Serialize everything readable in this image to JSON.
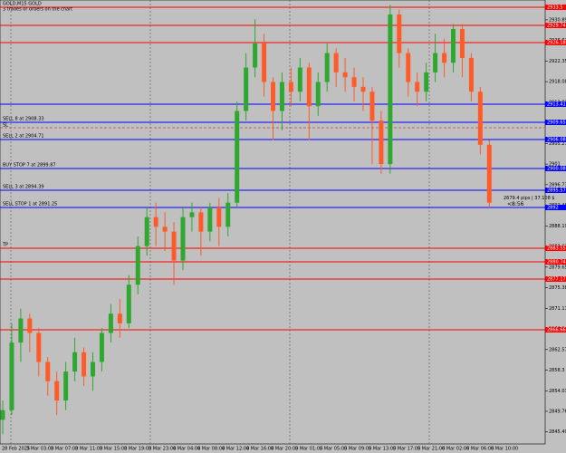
{
  "chart_data": {
    "type": "candlestick",
    "title": "GOLD,M15 GOLD",
    "subtitle": "3 trades or orders on the chart",
    "up_color": "#2fa82f",
    "down_color": "#ff5a28",
    "ylim": [
      2843,
      2935
    ],
    "yticks": [
      2845.49,
      2849.76,
      2854.03,
      2858.3,
      2862.57,
      2866.84,
      2871.11,
      2875.38,
      2879.65,
      2883.92,
      2888.19,
      2892.46,
      2896.73,
      2901,
      2905.27,
      2909.54,
      2913.81,
      2918.08,
      2922.35,
      2926.62,
      2930.89
    ],
    "time_labels": [
      "28 Feb 2025",
      "3 Mar 03:00",
      "3 Mar 07:00",
      "3 Mar 11:00",
      "3 Mar 15:00",
      "3 Mar 19:00",
      "3 Mar 23:00",
      "4 Mar 04:00",
      "4 Mar 08:00",
      "4 Mar 12:00",
      "4 Mar 16:00",
      "4 Mar 20:00",
      "5 Mar 01:00",
      "5 Mar 05:00",
      "5 Mar 09:00",
      "5 Mar 13:00",
      "5 Mar 17:00",
      "5 Mar 21:00",
      "6 Mar 02:00",
      "6 Mar 06:00",
      "6 Mar 10:00"
    ],
    "open": [
      2848,
      2850,
      2864,
      2869,
      2866,
      2860,
      2856,
      2852,
      2858,
      2862,
      2857,
      2860,
      2866,
      2870,
      2868,
      2876,
      2884,
      2890,
      2888,
      2887,
      2881,
      2890,
      2891,
      2887,
      2892,
      2888,
      2893,
      2912,
      2921,
      2926,
      2918,
      2912,
      2918,
      2916,
      2921,
      2913,
      2918,
      2924,
      2920,
      2919,
      2917,
      2916,
      2910,
      2901,
      2932,
      2924,
      2918,
      2916,
      2920,
      2924,
      2922,
      2929,
      2923,
      2916,
      2905
    ],
    "high": [
      2852,
      2868,
      2871,
      2870,
      2867,
      2861,
      2858,
      2860,
      2865,
      2863,
      2862,
      2867,
      2872,
      2873,
      2878,
      2886,
      2892,
      2893,
      2891,
      2889,
      2892,
      2893,
      2892,
      2893,
      2894,
      2895,
      2914,
      2924,
      2931,
      2928,
      2919,
      2920,
      2921,
      2923,
      2922,
      2920,
      2926,
      2925,
      2923,
      2921,
      2919,
      2917,
      2912,
      2934,
      2933,
      2925,
      2920,
      2922,
      2928,
      2927,
      2930,
      2930,
      2924,
      2917,
      2906
    ],
    "low": [
      2845,
      2849,
      2860,
      2862,
      2857,
      2853,
      2849,
      2850,
      2856,
      2855,
      2854,
      2858,
      2864,
      2865,
      2867,
      2874,
      2882,
      2884,
      2883,
      2876,
      2879,
      2887,
      2882,
      2885,
      2884,
      2886,
      2892,
      2910,
      2919,
      2915,
      2906,
      2908,
      2913,
      2914,
      2906,
      2911,
      2916,
      2917,
      2916,
      2914,
      2912,
      2901,
      2899,
      2899,
      2921,
      2915,
      2913,
      2914,
      2918,
      2919,
      2920,
      2919,
      2914,
      2903,
      2892
    ],
    "close": [
      2850,
      2864,
      2869,
      2866,
      2860,
      2856,
      2852,
      2858,
      2862,
      2857,
      2860,
      2866,
      2870,
      2868,
      2876,
      2884,
      2890,
      2888,
      2887,
      2881,
      2890,
      2891,
      2887,
      2892,
      2888,
      2893,
      2912,
      2921,
      2926,
      2918,
      2912,
      2918,
      2916,
      2921,
      2913,
      2918,
      2924,
      2920,
      2919,
      2917,
      2916,
      2910,
      2901,
      2932,
      2924,
      2918,
      2916,
      2920,
      2924,
      2922,
      2929,
      2923,
      2916,
      2905,
      2893
    ],
    "levels": [
      {
        "value": 2933.5,
        "color": "#ff0000"
      },
      {
        "value": 2929.74,
        "color": "#ff0000"
      },
      {
        "value": 2926.18,
        "color": "#ff0000"
      },
      {
        "value": 2913.41,
        "color": "#0000ff"
      },
      {
        "value": 2909.65,
        "color": "#0000ff",
        "label": "SELL 8 at 2908.33"
      },
      {
        "value": 2906.08,
        "color": "#0000ff",
        "label": "SELL 2 at 2904.71"
      },
      {
        "value": 2900.08,
        "color": "#0000ff",
        "label": "BUY STOP 7 at 2899.87"
      },
      {
        "value": 2895.57,
        "color": "#0000ff",
        "label": "SELL 3 at 2894.39"
      },
      {
        "value": 2892,
        "color": "#0000ff",
        "label": "SELL STOP 1 at 2891.25"
      },
      {
        "value": 2883.55,
        "color": "#ff0000",
        "label": "TP"
      },
      {
        "value": 2880.74,
        "color": "#ff0000"
      },
      {
        "value": 2877.17,
        "color": "#ff0000"
      },
      {
        "value": 2866.66,
        "color": "#ff0000"
      }
    ],
    "sl_level": {
      "value": 2908.53,
      "label": "SL"
    },
    "info": "2679.4 pips | 37.108 $",
    "timer": "<8:56"
  }
}
